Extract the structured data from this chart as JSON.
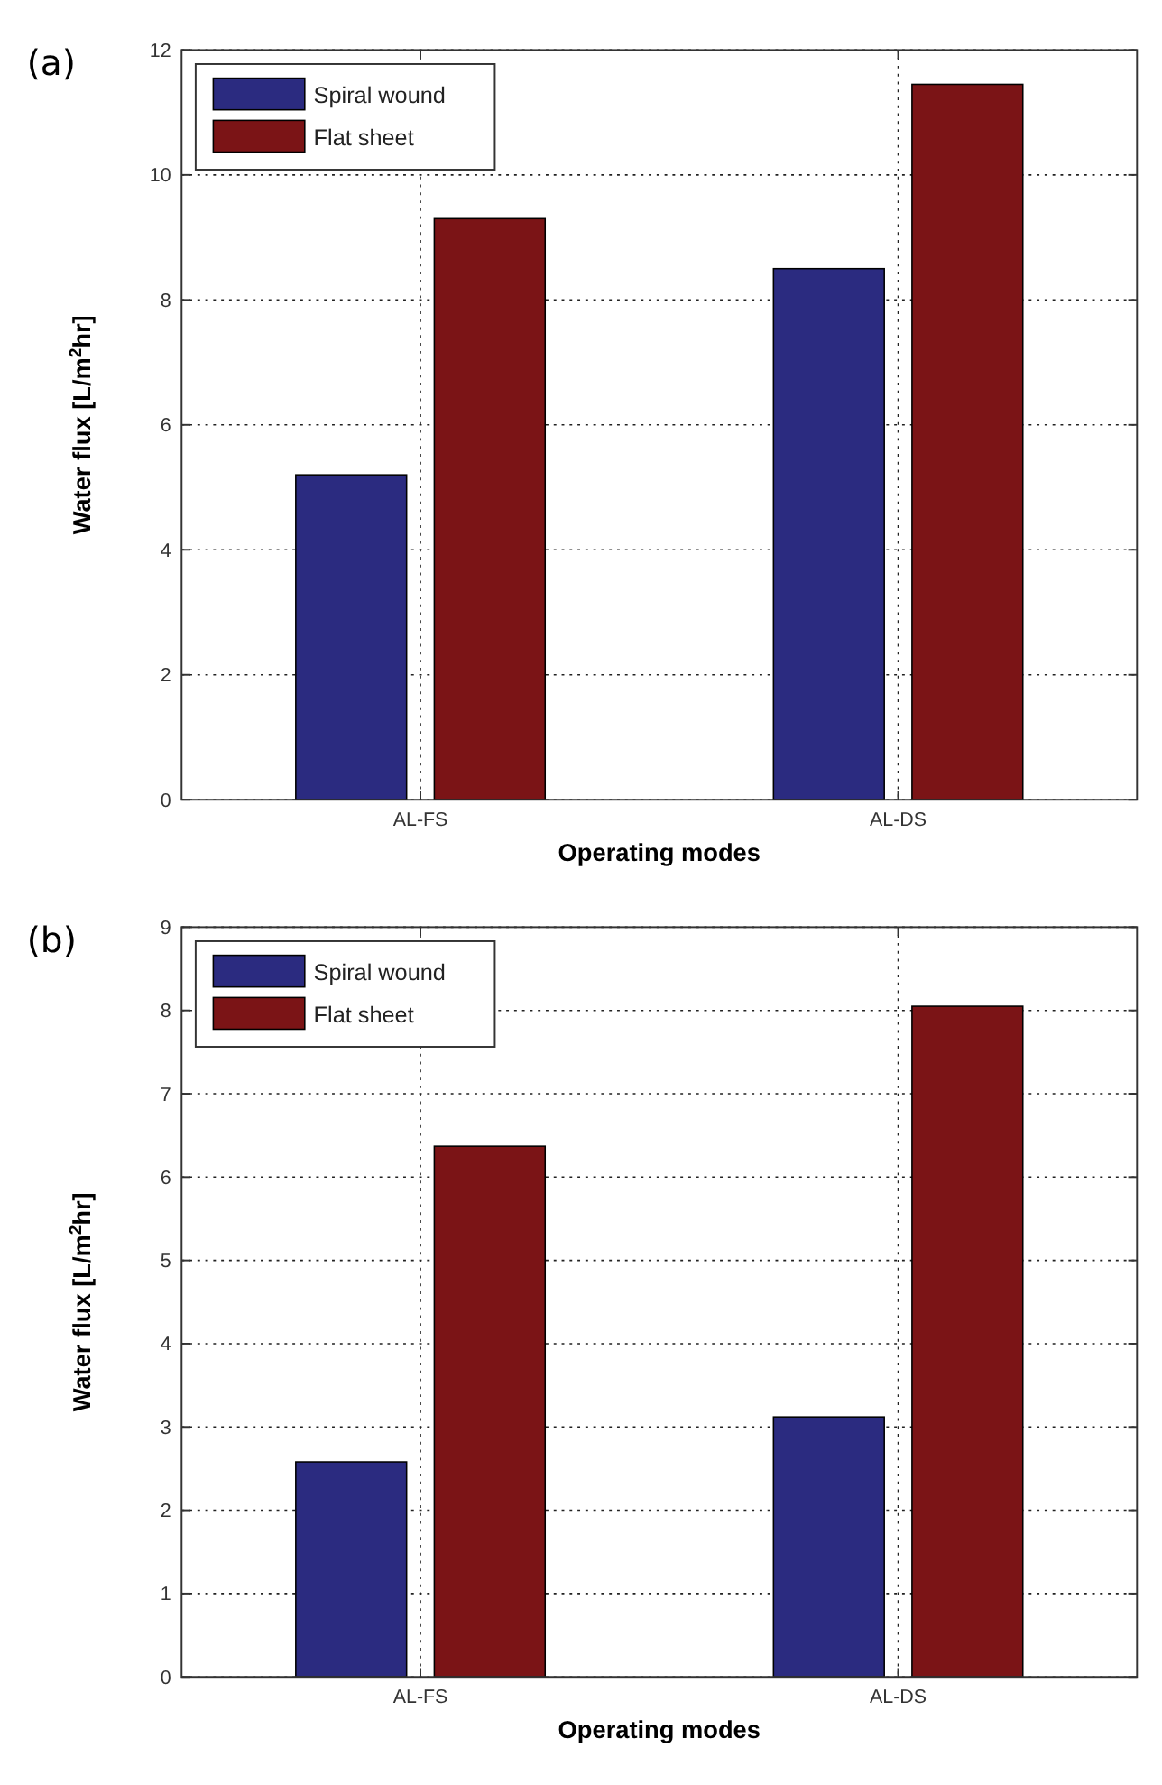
{
  "chart_data": [
    {
      "type": "bar",
      "title": "(a)",
      "xlabel": "Operating modes",
      "ylabel": "Water flux [L/m$^{2}$hr]",
      "categories": [
        "AL-FS",
        "AL-DS"
      ],
      "series": [
        {
          "name": "Spiral wound",
          "color": "#2b2b80",
          "values": [
            5.2,
            8.5
          ]
        },
        {
          "name": "Flat sheet",
          "color": "#7b1416",
          "values": [
            9.3,
            11.45
          ]
        }
      ],
      "ylim": [
        0,
        12
      ],
      "yticks": [
        0,
        2,
        4,
        6,
        8,
        10,
        12
      ],
      "grid": true,
      "legend": "top left"
    },
    {
      "type": "bar",
      "title": "(b)",
      "xlabel": "Operating modes",
      "ylabel": "Water flux [L/m$^{2}$hr]",
      "categories": [
        "AL-FS",
        "AL-DS"
      ],
      "series": [
        {
          "name": "Spiral wound",
          "color": "#2b2b80",
          "values": [
            2.58,
            3.12
          ]
        },
        {
          "name": "Flat sheet",
          "color": "#7b1416",
          "values": [
            6.37,
            8.05
          ]
        }
      ],
      "ylim": [
        0,
        9
      ],
      "yticks": [
        0,
        1,
        2,
        3,
        4,
        5,
        6,
        7,
        8,
        9
      ],
      "grid": true,
      "legend": "top left"
    }
  ]
}
